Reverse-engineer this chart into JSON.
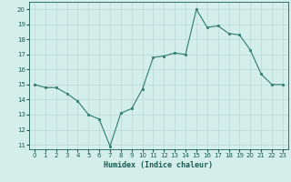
{
  "x": [
    0,
    1,
    2,
    3,
    4,
    5,
    6,
    7,
    8,
    9,
    10,
    11,
    12,
    13,
    14,
    15,
    16,
    17,
    18,
    19,
    20,
    21,
    22,
    23
  ],
  "y": [
    15.0,
    14.8,
    14.8,
    14.4,
    13.9,
    13.0,
    12.7,
    10.9,
    13.1,
    13.4,
    14.7,
    16.8,
    16.9,
    17.1,
    17.0,
    20.0,
    18.8,
    18.9,
    18.4,
    18.3,
    17.3,
    15.7,
    15.0,
    15.0
  ],
  "xlabel": "Humidex (Indice chaleur)",
  "xlim": [
    -0.5,
    23.5
  ],
  "ylim": [
    10.7,
    20.5
  ],
  "yticks": [
    11,
    12,
    13,
    14,
    15,
    16,
    17,
    18,
    19,
    20
  ],
  "xticks": [
    0,
    1,
    2,
    3,
    4,
    5,
    6,
    7,
    8,
    9,
    10,
    11,
    12,
    13,
    14,
    15,
    16,
    17,
    18,
    19,
    20,
    21,
    22,
    23
  ],
  "line_color": "#2e7d6e",
  "bg_color": "#d4eee9",
  "grid_color": "#b8d8d4",
  "label_color": "#1a5c50",
  "tick_color": "#1a5c50"
}
